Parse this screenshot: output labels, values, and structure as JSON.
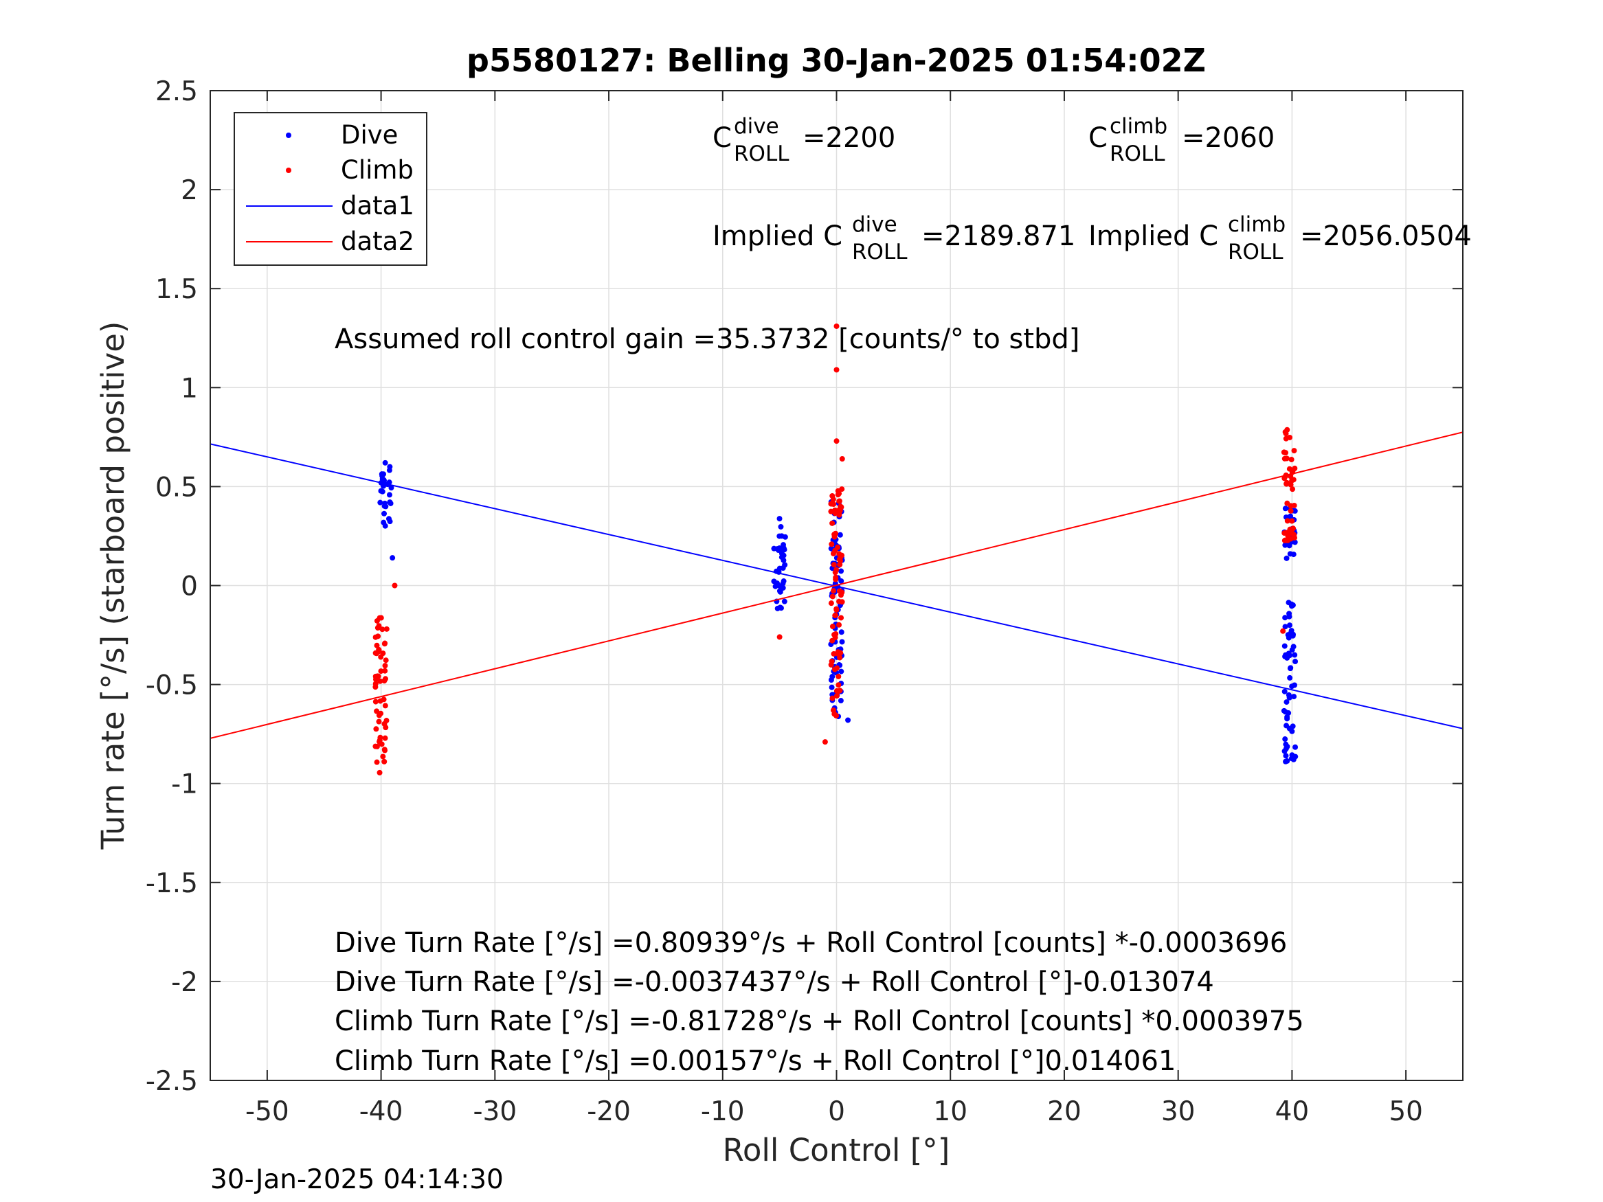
{
  "chart_data": {
    "type": "scatter",
    "title": "p5580127: Belling 30-Jan-2025 01:54:02Z",
    "xlabel": "Roll Control [°]",
    "ylabel": "Turn rate [°/s] (starboard positive)",
    "xlim": [
      -55,
      55
    ],
    "ylim": [
      -2.5,
      2.5
    ],
    "grid": true,
    "legend_position": "top-left",
    "x_ticks": [
      -50,
      -40,
      -30,
      -20,
      -10,
      0,
      10,
      20,
      30,
      40,
      50
    ],
    "x_tick_labels": [
      "-50",
      "-40",
      "-30",
      "-20",
      "-10",
      "0",
      "10",
      "20",
      "30",
      "40",
      "50"
    ],
    "y_ticks": [
      2.5,
      2,
      1.5,
      1,
      0.5,
      0,
      -0.5,
      -1,
      -1.5,
      -2,
      -2.5
    ],
    "y_tick_labels": [
      "2.5",
      "2",
      "1.5",
      "1",
      "0.5",
      "0",
      "-0.5",
      "-1",
      "-1.5",
      "-2",
      "-2.5"
    ],
    "series": [
      {
        "name": "Dive",
        "kind": "scatter",
        "color": "#0000ff",
        "clusters": [
          {
            "x": -39.6,
            "y_range": [
              0.26,
              0.63
            ]
          },
          {
            "x": -5,
            "y_range": [
              -0.12,
              0.34
            ]
          },
          {
            "x": 0,
            "y_range": [
              -0.69,
              0.45
            ]
          },
          {
            "x": 39.8,
            "y_range": [
              -0.9,
              -0.08
            ]
          },
          {
            "x": 39.8,
            "y_range": [
              0.12,
              0.4
            ]
          }
        ],
        "outliers": [
          {
            "x": 1,
            "y": -0.68
          },
          {
            "x": -0.3,
            "y": 0.23
          },
          {
            "x": -39.0,
            "y": 0.14
          }
        ]
      },
      {
        "name": "Climb",
        "kind": "scatter",
        "color": "#ff0000",
        "clusters": [
          {
            "x": -40.0,
            "y_range": [
              -0.95,
              -0.13
            ]
          },
          {
            "x": 0,
            "y_range": [
              -0.66,
              0.5
            ]
          },
          {
            "x": 39.8,
            "y_range": [
              0.22,
              0.84
            ]
          }
        ],
        "outliers": [
          {
            "x": 0,
            "y": 1.31
          },
          {
            "x": 0,
            "y": 1.09
          },
          {
            "x": 0,
            "y": 0.73
          },
          {
            "x": 0.5,
            "y": 0.64
          },
          {
            "x": -1.0,
            "y": -0.79
          },
          {
            "x": -5,
            "y": -0.26
          },
          {
            "x": -38.8,
            "y": 0.0
          },
          {
            "x": 39.2,
            "y": -0.23
          }
        ]
      },
      {
        "name": "data1",
        "kind": "line",
        "color": "#0000ff",
        "intercept": -0.0037437,
        "slope": -0.013074
      },
      {
        "name": "data2",
        "kind": "line",
        "color": "#ff0000",
        "intercept": 0.00157,
        "slope": 0.014061
      }
    ],
    "legend": [
      "Dive",
      "Climb",
      "data1",
      "data2"
    ],
    "annotations": {
      "c_dive_base": "C",
      "c_dive_sup": "dive",
      "c_dive_sub": "ROLL",
      "c_dive_value": "=2200",
      "c_climb_base": "C",
      "c_climb_sup": "climb",
      "c_climb_sub": "ROLL",
      "c_climb_value": "=2060",
      "implied_dive_prefix": "Implied C",
      "implied_dive_sup": "dive",
      "implied_dive_sub": "ROLL",
      "implied_dive_value": "=2189.871",
      "implied_climb_prefix": "Implied C",
      "implied_climb_sup": "climb",
      "implied_climb_sub": "ROLL",
      "implied_climb_value": "=2056.0504",
      "gain": "Assumed roll control gain =35.3732 [counts/° to stbd]",
      "eq1": "Dive Turn Rate [°/s] =0.80939°/s + Roll Control [counts] *-0.0003696",
      "eq2": "Dive Turn Rate [°/s] =-0.0037437°/s + Roll Control [°]-0.013074",
      "eq3": "Climb Turn Rate [°/s] =-0.81728°/s + Roll Control [counts] *0.0003975",
      "eq4": "Climb Turn Rate [°/s] =0.00157°/s + Roll Control [°]0.014061"
    },
    "timestamp": "30-Jan-2025 04:14:30"
  }
}
